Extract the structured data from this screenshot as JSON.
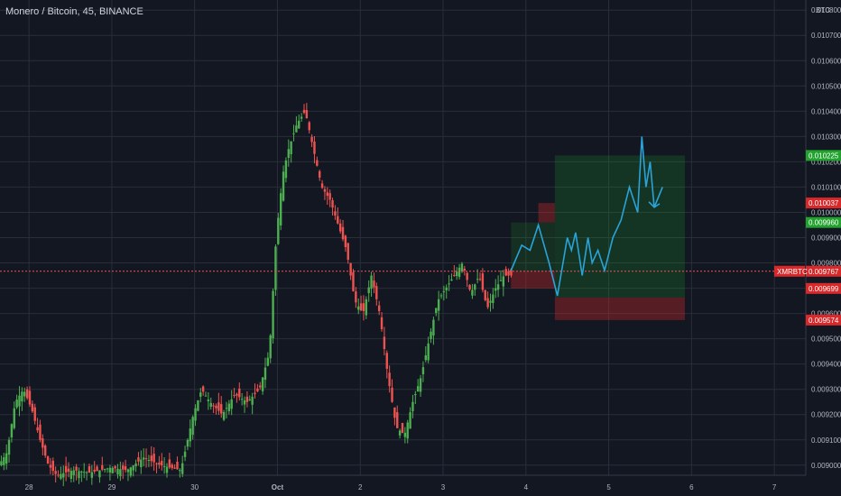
{
  "header": {
    "title": "Monero / Bitcoin, 45, BINANCE"
  },
  "colors": {
    "up": "#26a69a",
    "up_body": "#4caf50",
    "down": "#ef5350",
    "grid": "#2a2e39",
    "bg": "#131722",
    "projection": "#29a3d8",
    "target": "#21a32e",
    "stop": "#d8282a"
  },
  "chart_data": {
    "type": "candlestick",
    "symbol": "XMRBTC",
    "price_axis_unit": "BTC",
    "y_ticks": [
      "0.010800",
      "0.010700",
      "0.010600",
      "0.010500",
      "0.010400",
      "0.010300",
      "0.010200",
      "0.010100",
      "0.010000",
      "0.009900",
      "0.009800",
      "0.009700",
      "0.009600",
      "0.009500",
      "0.009400",
      "0.009300",
      "0.009200",
      "0.009100",
      "0.009000"
    ],
    "ylim": [
      0.00896,
      0.01084
    ],
    "x_ticks": [
      "28",
      "29",
      "30",
      "Oct",
      "2",
      "3",
      "4",
      "5",
      "6",
      "7"
    ],
    "x_tick_days": [
      0,
      1,
      2,
      3,
      4,
      5,
      6,
      7,
      8,
      9
    ],
    "xlim": [
      -0.35,
      9.38
    ],
    "ohlc_keypoints": [
      [
        -0.35,
        0.009
      ],
      [
        -0.25,
        0.00905
      ],
      [
        -0.15,
        0.00925
      ],
      [
        -0.05,
        0.0093
      ],
      [
        0.05,
        0.00922
      ],
      [
        0.15,
        0.0091
      ],
      [
        0.25,
        0.009
      ],
      [
        0.35,
        0.00896
      ],
      [
        0.55,
        0.00898
      ],
      [
        0.75,
        0.00897
      ],
      [
        1.0,
        0.00899
      ],
      [
        1.2,
        0.00898
      ],
      [
        1.4,
        0.00903
      ],
      [
        1.6,
        0.009
      ],
      [
        1.85,
        0.00898
      ],
      [
        2.0,
        0.0092
      ],
      [
        2.1,
        0.0093
      ],
      [
        2.2,
        0.00925
      ],
      [
        2.35,
        0.0092
      ],
      [
        2.5,
        0.00928
      ],
      [
        2.65,
        0.00925
      ],
      [
        2.8,
        0.0093
      ],
      [
        2.92,
        0.00945
      ],
      [
        3.0,
        0.0099
      ],
      [
        3.08,
        0.01015
      ],
      [
        3.15,
        0.01025
      ],
      [
        3.25,
        0.01035
      ],
      [
        3.35,
        0.0104
      ],
      [
        3.45,
        0.01025
      ],
      [
        3.55,
        0.0101
      ],
      [
        3.65,
        0.01005
      ],
      [
        3.75,
        0.00995
      ],
      [
        3.85,
        0.00985
      ],
      [
        3.95,
        0.00965
      ],
      [
        4.05,
        0.0096
      ],
      [
        4.15,
        0.00975
      ],
      [
        4.25,
        0.0096
      ],
      [
        4.35,
        0.00935
      ],
      [
        4.45,
        0.00915
      ],
      [
        4.55,
        0.00912
      ],
      [
        4.65,
        0.00925
      ],
      [
        4.75,
        0.00935
      ],
      [
        4.85,
        0.0095
      ],
      [
        4.95,
        0.00965
      ],
      [
        5.05,
        0.0097
      ],
      [
        5.15,
        0.00975
      ],
      [
        5.25,
        0.0098
      ],
      [
        5.35,
        0.00968
      ],
      [
        5.45,
        0.00975
      ],
      [
        5.55,
        0.00962
      ],
      [
        5.65,
        0.0097
      ],
      [
        5.75,
        0.00975
      ],
      [
        5.82,
        0.00975
      ]
    ],
    "projection_path": [
      [
        5.82,
        0.00977
      ],
      [
        5.95,
        0.00987
      ],
      [
        6.05,
        0.00985
      ],
      [
        6.15,
        0.00995
      ],
      [
        6.28,
        0.0098
      ],
      [
        6.38,
        0.00967
      ],
      [
        6.5,
        0.0099
      ],
      [
        6.55,
        0.00985
      ],
      [
        6.6,
        0.00992
      ],
      [
        6.68,
        0.00975
      ],
      [
        6.75,
        0.0099
      ],
      [
        6.8,
        0.0098
      ],
      [
        6.87,
        0.00985
      ],
      [
        6.95,
        0.00977
      ],
      [
        7.05,
        0.0099
      ],
      [
        7.15,
        0.00997
      ],
      [
        7.25,
        0.0101
      ],
      [
        7.35,
        0.01
      ],
      [
        7.4,
        0.0103
      ],
      [
        7.45,
        0.0101
      ],
      [
        7.5,
        0.0102
      ],
      [
        7.55,
        0.01002
      ],
      [
        7.65,
        0.0101
      ]
    ],
    "projection_arrow_end": [
      7.55,
      0.01002
    ],
    "target_zone": {
      "x": [
        6.35,
        7.92
      ],
      "y": [
        0.009663,
        0.010225
      ]
    },
    "stop_zone": {
      "x": [
        6.35,
        7.92
      ],
      "y": [
        0.009574,
        0.009663
      ]
    },
    "entry_box_target": {
      "x": [
        5.82,
        6.35
      ],
      "y": [
        0.009767,
        0.00996
      ]
    },
    "entry_box_stop": {
      "x": [
        5.82,
        6.35
      ],
      "y": [
        0.009699,
        0.009767
      ]
    },
    "small_red_box": {
      "x": [
        6.15,
        6.35
      ],
      "y": [
        0.00996,
        0.010037
      ]
    },
    "current_price": 0.009767,
    "price_labels": [
      {
        "value": 0.010225,
        "text": "0.010225",
        "color": "#21a32e"
      },
      {
        "value": 0.010037,
        "text": "0.010037",
        "color": "#d8282a"
      },
      {
        "value": 0.00996,
        "text": "0.009960",
        "color": "#21a32e"
      },
      {
        "value": 0.009767,
        "text": "0.009767",
        "color": "#d8282a"
      },
      {
        "value": 0.009699,
        "text": "0.009699",
        "color": "#d8282a"
      },
      {
        "value": 0.009574,
        "text": "0.009574",
        "color": "#d8282a"
      }
    ],
    "symbol_tag": "XMRBTC"
  }
}
